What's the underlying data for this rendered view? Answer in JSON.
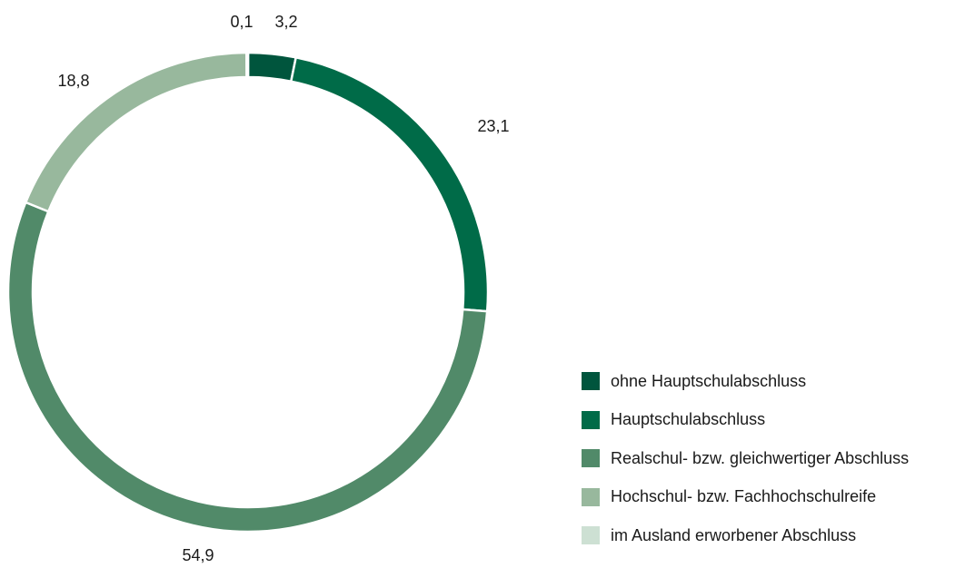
{
  "chart_data": {
    "type": "pie",
    "variant": "donut",
    "categories": [
      "ohne Hauptschulabschluss",
      "Hauptschulabschluss",
      "Realschul- bzw. gleichwertiger Abschluss",
      "Hochschul- bzw. Fachhochschulreife",
      "im Ausland erworbener Abschluss"
    ],
    "values": [
      3.2,
      23.1,
      54.9,
      18.8,
      0.1
    ],
    "value_labels": [
      "3,2",
      "23,1",
      "54,9",
      "18,8",
      "0,1"
    ],
    "colors": [
      "#00553d",
      "#006b48",
      "#518a69",
      "#98b89d",
      "#cde0d3"
    ],
    "legend_position": "bottom-right",
    "title": "",
    "start_angle": "12 o'clock, clockwise"
  }
}
